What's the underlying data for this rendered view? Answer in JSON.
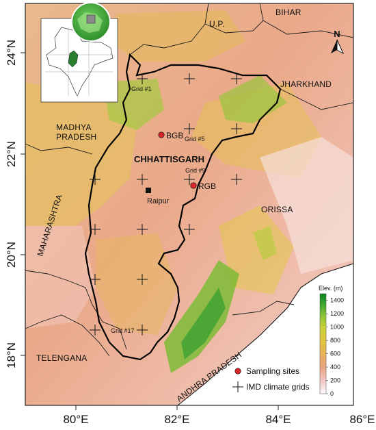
{
  "axes": {
    "lat_labels": [
      "24°N",
      "22°N",
      "20°N",
      "18°N"
    ],
    "lon_labels": [
      "80°E",
      "82°E",
      "84°E",
      "86°E"
    ]
  },
  "regions": {
    "bihar": "BIHAR",
    "up": "U.P.",
    "jharkhand": "JHARKHAND",
    "madhya_pradesh_1": "MADHYA",
    "madhya_pradesh_2": "PRADESH",
    "chhattisgarh": "CHHATTISGARH",
    "maharashtra": "MAHARASHTRA",
    "orissa": "ORISSA",
    "telengana": "TELENGANA",
    "andhra_pradesh": "ANDHRA PRADESH"
  },
  "grids": {
    "g1": "Grid #1",
    "g5": "Grid #5",
    "g9": "Grid #9",
    "g17": "Grid #17"
  },
  "sites": {
    "bgb": "BGB",
    "rgb": "RGB"
  },
  "city": "Raipur",
  "north_arrow": "N",
  "colorbar": {
    "title": "Elev. (m)",
    "ticks": [
      "1400",
      "1200",
      "1000",
      "800",
      "600",
      "400",
      "200",
      "0"
    ],
    "min": 0,
    "max": 1500,
    "colors": [
      "#ffffff",
      "#f2c9c9",
      "#eba37e",
      "#e8b15a",
      "#e2c43e",
      "#c9d23a",
      "#8cc43a",
      "#3aa531",
      "#0a7f22"
    ]
  },
  "legend": {
    "sampling": "Sampling sites",
    "imd": "IMD climate grids"
  },
  "colors": {
    "site_marker": "#d9262b",
    "grid_marker": "#222222",
    "boundary": "#111111"
  }
}
